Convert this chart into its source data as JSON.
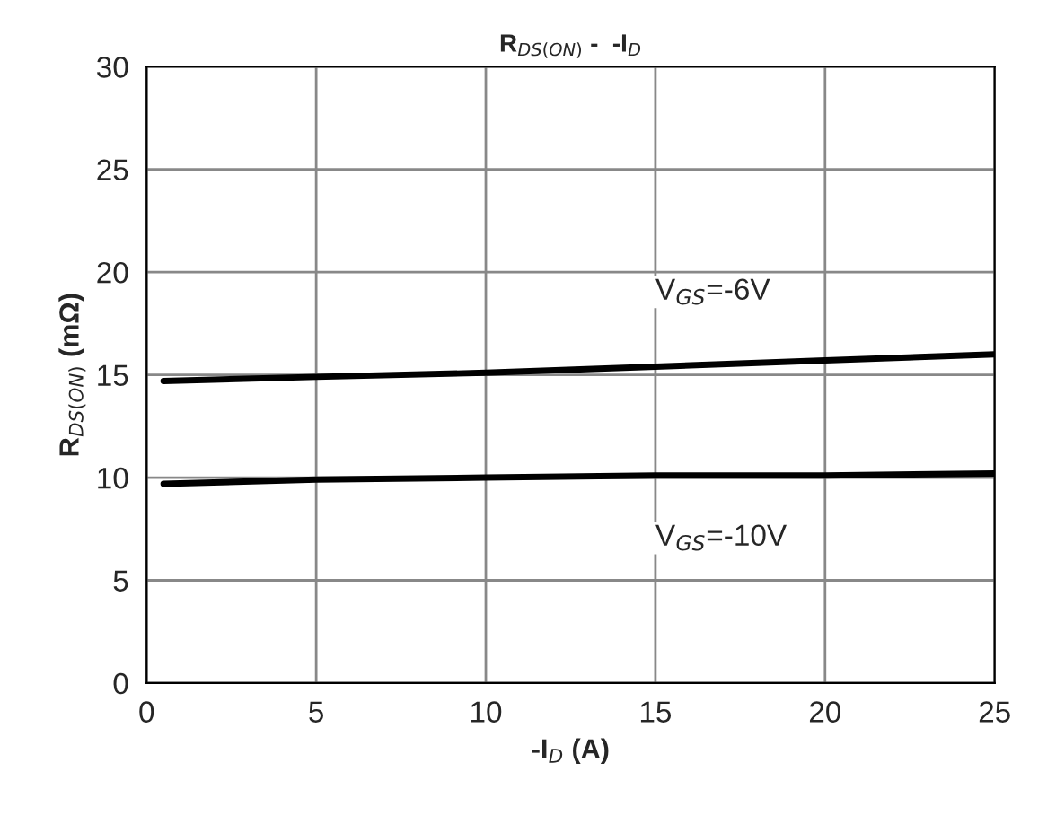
{
  "chart_data": {
    "type": "line",
    "title": "R$_{DS(ON)}$ -  -I$_{D}$",
    "xlabel": "-I$_{D}$ (A)",
    "ylabel": "R$_{DS(ON)}$ (mΩ)",
    "series": [
      {
        "name": "V$_{GS}$=-6V",
        "color": "#000000",
        "x": [
          0.5,
          5,
          10,
          15,
          20,
          25
        ],
        "values": [
          14.7,
          14.9,
          15.1,
          15.4,
          15.7,
          16.0
        ]
      },
      {
        "name": "V$_{GS}$=-10V",
        "color": "#000000",
        "x": [
          0.5,
          5,
          10,
          15,
          20,
          25
        ],
        "values": [
          9.7,
          9.9,
          10.0,
          10.1,
          10.1,
          10.2
        ]
      }
    ],
    "xlim": [
      0,
      25
    ],
    "ylim": [
      0,
      30
    ],
    "xticks": [
      0,
      5,
      10,
      15,
      20,
      25
    ],
    "yticks": [
      0,
      5,
      10,
      15,
      20,
      25,
      30
    ],
    "grid": true,
    "marker": "none",
    "line_style": "solid",
    "legend": false
  }
}
